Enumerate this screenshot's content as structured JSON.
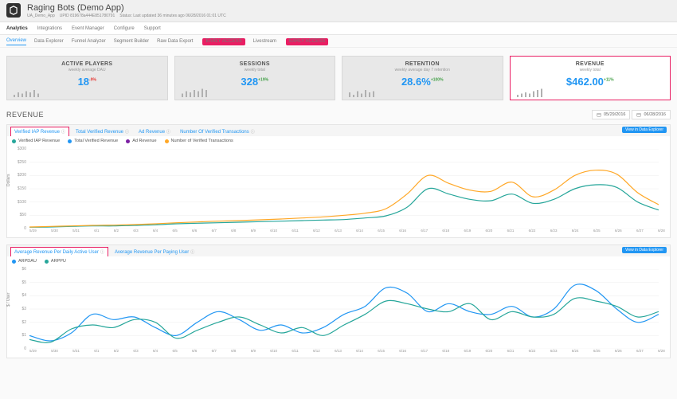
{
  "header": {
    "title": "Raging Bots (Demo App)",
    "org": "UA_Demo_App",
    "upid": "UPID 819678a444E851780791",
    "status": "Status: Last updated 36 minutes ago 06/28/2016 01:01 UTC"
  },
  "nav1": [
    "Analytics",
    "Integrations",
    "Event Manager",
    "Configure",
    "Support"
  ],
  "nav1_active": 0,
  "nav2": [
    {
      "label": "Overview",
      "badge": null,
      "active": true
    },
    {
      "label": "Data Explorer",
      "badge": null
    },
    {
      "label": "Funnel Analyzer",
      "badge": null
    },
    {
      "label": "Segment Builder",
      "badge": null
    },
    {
      "label": "Raw Data Export",
      "badge": "EARLY ACCESS"
    },
    {
      "label": "Livestream",
      "badge": "EARLY ACCESS"
    }
  ],
  "cards": [
    {
      "title": "ACTIVE PLAYERS",
      "sub": "weekly average DAU",
      "value": "18",
      "pct": "-9%",
      "pct_cls": "neg",
      "spark": [
        2,
        4,
        3,
        5,
        4,
        6,
        3
      ]
    },
    {
      "title": "SESSIONS",
      "sub": "weekly total",
      "value": "328",
      "pct": "+19%",
      "pct_cls": "pos",
      "spark": [
        3,
        5,
        4,
        6,
        5,
        7,
        6
      ]
    },
    {
      "title": "RETENTION",
      "sub": "weekly average day 7 retention",
      "value": "28.6%",
      "pct": "+100%",
      "pct_cls": "pos",
      "spark": [
        4,
        2,
        5,
        3,
        6,
        4,
        5
      ]
    },
    {
      "title": "REVENUE",
      "sub": "weekly total",
      "value": "$462.00",
      "pct": "+11%",
      "pct_cls": "pos",
      "spark": [
        2,
        3,
        4,
        3,
        5,
        6,
        7
      ],
      "selected": true
    }
  ],
  "section": {
    "title": "REVENUE",
    "date_from": "05/29/2016",
    "date_to": "06/28/2016"
  },
  "chart1": {
    "tabs": [
      "Verified IAP Revenue",
      "Total Verified Revenue",
      "Ad Revenue",
      "Number Of Verified Transactions"
    ],
    "active_tab": 0,
    "open_label": "View in Data Explorer",
    "legend": [
      {
        "label": "Verified IAP Revenue",
        "color": "#26a69a"
      },
      {
        "label": "Total Verified Revenue",
        "color": "#2196f3"
      },
      {
        "label": "Ad Revenue",
        "color": "#7b1fa2"
      },
      {
        "label": "Number of Verified Transactions",
        "color": "#ffa726"
      }
    ],
    "ylabel": "Dollars",
    "yticks": [
      "$300",
      "$250",
      "$200",
      "$150",
      "$100",
      "$50",
      "0"
    ],
    "x_dates": [
      "5/29",
      "5/30",
      "5/31",
      "6/1",
      "6/2",
      "6/3",
      "6/4",
      "6/5",
      "6/6",
      "6/7",
      "6/8",
      "6/9",
      "6/10",
      "6/11",
      "6/12",
      "6/13",
      "6/14",
      "6/15",
      "6/16",
      "6/17",
      "6/18",
      "6/19",
      "6/20",
      "6/21",
      "6/22",
      "6/23",
      "6/24",
      "6/25",
      "6/26",
      "6/27",
      "6/28"
    ],
    "series": {
      "teal": [
        5,
        6,
        8,
        10,
        10,
        12,
        14,
        18,
        20,
        22,
        24,
        26,
        28,
        30,
        32,
        34,
        40,
        48,
        80,
        150,
        130,
        110,
        105,
        130,
        95,
        110,
        150,
        165,
        155,
        100,
        70
      ],
      "orange": [
        6,
        8,
        10,
        12,
        13,
        15,
        18,
        22,
        25,
        28,
        30,
        33,
        36,
        40,
        44,
        50,
        58,
        75,
        130,
        200,
        170,
        145,
        140,
        175,
        120,
        145,
        200,
        220,
        205,
        135,
        90
      ]
    },
    "colors": {
      "teal": "#26a69a",
      "orange": "#ffa726"
    },
    "ylim": [
      0,
      300
    ]
  },
  "chart2": {
    "tabs": [
      "Average Revenue Per Daily Active User",
      "Average Revenue Per Paying User"
    ],
    "active_tab": 0,
    "open_label": "View in Data Explorer",
    "legend": [
      {
        "label": "ARPDAU",
        "color": "#2196f3"
      },
      {
        "label": "ARPPU",
        "color": "#26a69a"
      }
    ],
    "ylabel": "$ / User",
    "yticks": [
      "$6",
      "$5",
      "$4",
      "$3",
      "$2",
      "$1",
      "0"
    ],
    "x_dates": [
      "5/29",
      "5/30",
      "5/31",
      "6/1",
      "6/2",
      "6/3",
      "6/4",
      "6/5",
      "6/6",
      "6/7",
      "6/8",
      "6/9",
      "6/10",
      "6/11",
      "6/12",
      "6/13",
      "6/14",
      "6/15",
      "6/16",
      "6/17",
      "6/18",
      "6/19",
      "6/20",
      "6/21",
      "6/22",
      "6/23",
      "6/24",
      "6/25",
      "6/26",
      "6/27",
      "6/28"
    ],
    "series": {
      "blue": [
        1.0,
        0.6,
        1.2,
        2.6,
        2.2,
        2.4,
        1.6,
        1.0,
        2.0,
        2.8,
        2.2,
        1.4,
        1.8,
        1.2,
        1.6,
        2.6,
        3.2,
        4.6,
        4.2,
        2.8,
        3.4,
        2.8,
        2.6,
        3.2,
        2.4,
        3.0,
        4.8,
        4.4,
        3.0,
        2.0,
        2.6
      ],
      "teal": [
        0.7,
        0.5,
        1.5,
        1.8,
        1.6,
        2.2,
        2.0,
        0.8,
        1.4,
        2.0,
        2.4,
        1.8,
        1.2,
        1.6,
        1.0,
        1.8,
        2.6,
        3.6,
        3.4,
        3.0,
        2.8,
        3.4,
        2.2,
        2.8,
        2.4,
        2.6,
        3.8,
        3.6,
        3.2,
        2.4,
        2.8
      ]
    },
    "colors": {
      "blue": "#2196f3",
      "teal": "#26a69a"
    },
    "ylim": [
      0,
      6
    ]
  }
}
